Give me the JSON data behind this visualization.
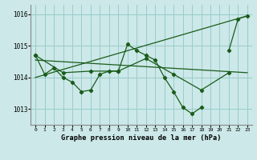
{
  "background_color": "#cce8e8",
  "grid_color": "#99cccc",
  "line_color": "#1a5c1a",
  "title": "Graphe pression niveau de la mer (hPa)",
  "xlim": [
    -0.5,
    23.5
  ],
  "ylim": [
    1012.5,
    1016.3
  ],
  "yticks": [
    1013,
    1014,
    1015,
    1016
  ],
  "xticks": [
    0,
    1,
    2,
    3,
    4,
    5,
    6,
    7,
    8,
    9,
    10,
    11,
    12,
    13,
    14,
    15,
    16,
    17,
    18,
    19,
    20,
    21,
    22,
    23
  ],
  "series": [
    {
      "x": [
        0,
        1,
        2,
        3,
        4,
        5,
        6,
        7,
        8,
        9,
        10,
        11,
        12,
        13,
        14,
        15,
        16,
        17,
        18,
        19,
        20,
        21,
        22,
        23
      ],
      "y": [
        1014.7,
        1014.1,
        1014.3,
        1014.0,
        1013.85,
        1013.55,
        1013.6,
        1014.1,
        1014.2,
        1014.2,
        1015.05,
        1014.85,
        1014.7,
        1014.55,
        1014.0,
        1013.55,
        1013.05,
        1012.85,
        1013.05,
        null,
        null,
        1014.85,
        1015.85,
        1015.95
      ],
      "has_markers": true
    },
    {
      "x": [
        0,
        3,
        6,
        9,
        12,
        15,
        18,
        21
      ],
      "y": [
        1014.7,
        1014.15,
        1014.2,
        1014.2,
        1014.6,
        1014.1,
        1013.6,
        1014.15
      ],
      "has_markers": true
    },
    {
      "x": [
        0,
        23
      ],
      "y": [
        1014.55,
        1014.15
      ],
      "has_markers": false
    },
    {
      "x": [
        0,
        23
      ],
      "y": [
        1014.0,
        1015.95
      ],
      "has_markers": false
    }
  ]
}
